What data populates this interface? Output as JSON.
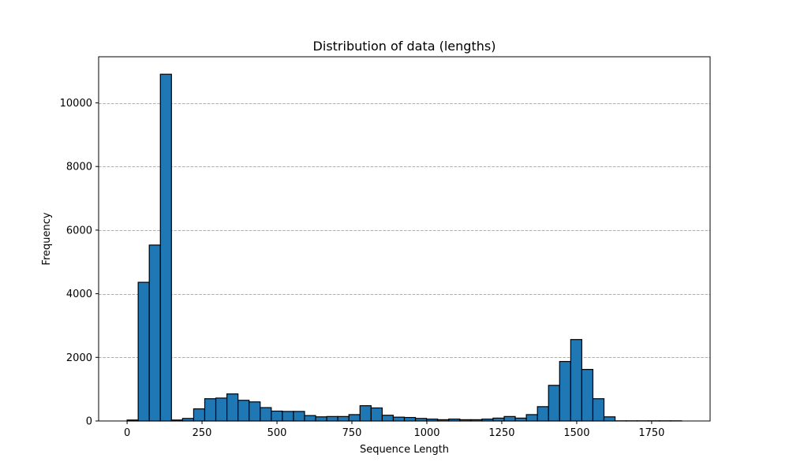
{
  "chart_data": {
    "type": "bar",
    "title": "Distribution of data (lengths)",
    "xlabel": "Sequence Length",
    "ylabel": "Frequency",
    "xlim": [
      -95,
      1945
    ],
    "ylim": [
      0,
      11450
    ],
    "xticks": [
      0,
      250,
      500,
      750,
      1000,
      1250,
      1500,
      1750
    ],
    "yticks": [
      0,
      2000,
      4000,
      6000,
      8000,
      10000
    ],
    "grid": "y-dashed",
    "bin_edges": [
      0,
      37,
      74,
      111,
      148,
      185,
      222,
      259,
      296,
      333,
      370,
      407,
      444,
      481,
      518,
      555,
      592,
      629,
      666,
      703,
      740,
      777,
      814,
      851,
      888,
      925,
      962,
      999,
      1036,
      1073,
      1110,
      1147,
      1184,
      1221,
      1258,
      1295,
      1332,
      1369,
      1406,
      1443,
      1480,
      1517,
      1554,
      1591,
      1628,
      1665,
      1702,
      1739,
      1776,
      1813,
      1850
    ],
    "values": [
      30,
      4360,
      5530,
      10900,
      30,
      80,
      380,
      700,
      720,
      850,
      650,
      600,
      420,
      310,
      300,
      300,
      170,
      130,
      140,
      140,
      200,
      480,
      410,
      180,
      120,
      110,
      80,
      60,
      40,
      60,
      40,
      40,
      60,
      90,
      140,
      90,
      200,
      450,
      1120,
      1870,
      2560,
      1620,
      700,
      130,
      5,
      5,
      5,
      5,
      5,
      5
    ],
    "bar_color": "#1f77b4",
    "edge_color": "#000000"
  }
}
